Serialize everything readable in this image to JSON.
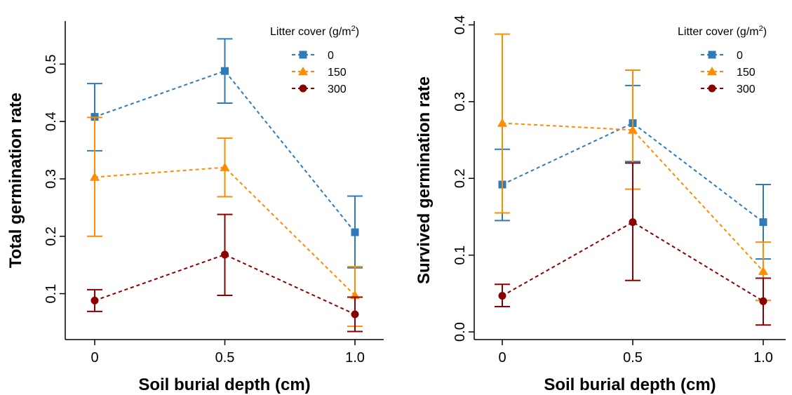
{
  "chart_data": [
    {
      "type": "line",
      "xlabel": "Soil burial depth (cm)",
      "ylabel": "Total germination rate",
      "x": [
        0,
        0.5,
        1.0
      ],
      "x_tick_labels": [
        "0",
        "0.5",
        "1.0"
      ],
      "ylim": [
        0.02,
        0.575
      ],
      "y_ticks": [
        0.1,
        0.2,
        0.3,
        0.4,
        0.5
      ],
      "y_tick_labels": [
        "0.1",
        "0.2",
        "0.3",
        "0.4",
        "0.5"
      ],
      "grid": false,
      "legend": {
        "title": "Litter cover (g/m",
        "title_sup": "2",
        "title_close": ")",
        "position": "top-right"
      },
      "series": [
        {
          "name": "0",
          "color": "#2f7bb8",
          "marker": "square",
          "values": [
            0.408,
            0.488,
            0.207
          ],
          "err_low": [
            0.349,
            0.432,
            0.145
          ],
          "err_high": [
            0.466,
            0.544,
            0.27
          ]
        },
        {
          "name": "150",
          "color": "#ff8c00",
          "marker": "triangle",
          "values": [
            0.303,
            0.32,
            0.097
          ],
          "err_low": [
            0.2,
            0.269,
            0.043
          ],
          "err_high": [
            0.407,
            0.371,
            0.147
          ]
        },
        {
          "name": "300",
          "color": "#8b0000",
          "marker": "circle",
          "values": [
            0.088,
            0.168,
            0.064
          ],
          "err_low": [
            0.069,
            0.097,
            0.034
          ],
          "err_high": [
            0.107,
            0.238,
            0.094
          ]
        }
      ]
    },
    {
      "type": "line",
      "xlabel": "Soil burial depth (cm)",
      "ylabel": "Survived germination rate",
      "x": [
        0,
        0.5,
        1.0
      ],
      "x_tick_labels": [
        "0",
        "0.5",
        "1.0"
      ],
      "ylim": [
        -0.01,
        0.405
      ],
      "y_ticks": [
        0.0,
        0.1,
        0.2,
        0.3,
        0.4
      ],
      "y_tick_labels": [
        "0.0",
        "0.1",
        "0.2",
        "0.3",
        "0.4"
      ],
      "grid": false,
      "legend": {
        "title": "Litter cover (g/m",
        "title_sup": "2",
        "title_close": ")",
        "position": "top-right"
      },
      "series": [
        {
          "name": "0",
          "color": "#2f7bb8",
          "marker": "square",
          "values": [
            0.192,
            0.272,
            0.143
          ],
          "err_low": [
            0.145,
            0.222,
            0.095
          ],
          "err_high": [
            0.238,
            0.321,
            0.192
          ]
        },
        {
          "name": "150",
          "color": "#ff8c00",
          "marker": "triangle",
          "values": [
            0.272,
            0.263,
            0.079
          ],
          "err_low": [
            0.155,
            0.186,
            0.041
          ],
          "err_high": [
            0.388,
            0.341,
            0.117
          ]
        },
        {
          "name": "300",
          "color": "#8b0000",
          "marker": "circle",
          "values": [
            0.047,
            0.143,
            0.04
          ],
          "err_low": [
            0.033,
            0.067,
            0.009
          ],
          "err_high": [
            0.062,
            0.22,
            0.07
          ]
        }
      ]
    }
  ]
}
